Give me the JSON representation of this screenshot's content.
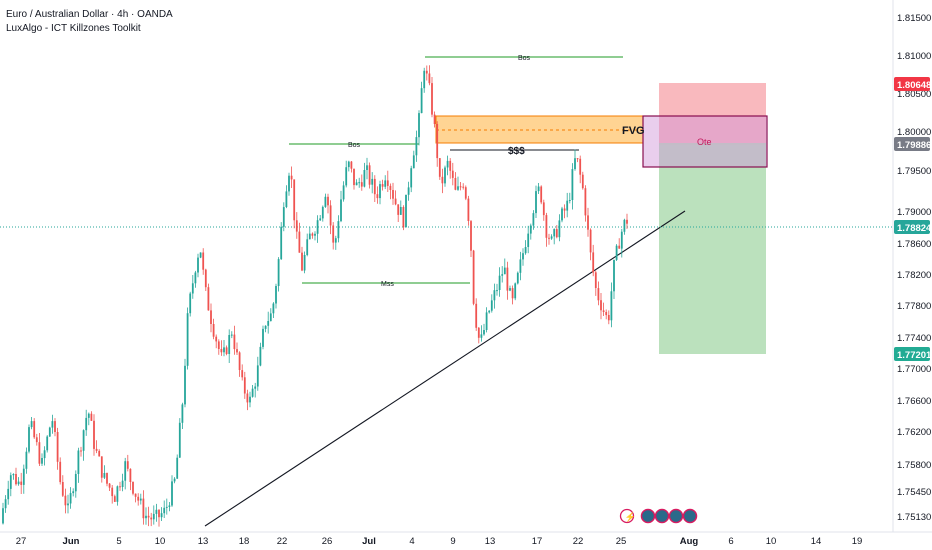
{
  "header": {
    "symbol": "Euro / Australian Dollar · 4h · OANDA",
    "indicator": "LuxAlgo - ICT Killzones Toolkit"
  },
  "colors": {
    "up": "#26a69a",
    "down": "#ef5350",
    "last_price": "#26a69a",
    "stop_tag": "#f23645",
    "entry_tag": "#787b86",
    "target_tag": "#22ab94",
    "bos_line": "#4caf50",
    "fvg_fill": "#ffcc80",
    "fvg_border": "#f57c00",
    "ote_border": "#880e4f",
    "stop_zone": "#f7a1a8",
    "target_zone": "#b7dfb9"
  },
  "chart_data": {
    "type": "candlestick",
    "price_ticks": [
      "1.81500",
      "1.81000",
      "1.80500",
      "1.80000",
      "1.79500",
      "1.79000",
      "1.78600",
      "1.78200",
      "1.77800",
      "1.77400",
      "1.77000",
      "1.76600",
      "1.76200",
      "1.75800",
      "1.75450",
      "1.75130"
    ],
    "date_ticks": [
      "27",
      "Jun",
      "5",
      "10",
      "13",
      "18",
      "22",
      "26",
      "Jul",
      "4",
      "9",
      "13",
      "17",
      "22",
      "25",
      "Aug",
      "6",
      "10",
      "14",
      "19"
    ],
    "price_tags": {
      "stop": "1.80648",
      "entry": "1.79886",
      "last": "1.78824",
      "target": "1.77201"
    },
    "annotations": {
      "bos_upper": "Bos",
      "bos_middle": "Bos",
      "mss": "Mss",
      "liquidity": "$$$",
      "fvg": "FVG",
      "ote": "Ote"
    },
    "trendline": {
      "from": {
        "date": "13",
        "price": 1.7503
      },
      "to": {
        "date": "Aug",
        "price": 1.79
      }
    },
    "candle_path": [
      [
        0,
        1.7505
      ],
      [
        10,
        1.757
      ],
      [
        20,
        1.7555
      ],
      [
        30,
        1.763
      ],
      [
        42,
        1.758
      ],
      [
        52,
        1.764
      ],
      [
        60,
        1.756
      ],
      [
        68,
        1.752
      ],
      [
        78,
        1.759
      ],
      [
        88,
        1.765
      ],
      [
        95,
        1.76
      ],
      [
        105,
        1.756
      ],
      [
        115,
        1.754
      ],
      [
        125,
        1.758
      ],
      [
        135,
        1.7545
      ],
      [
        145,
        1.7515
      ],
      [
        155,
        1.751
      ],
      [
        165,
        1.752
      ],
      [
        175,
        1.756
      ],
      [
        182,
        1.765
      ],
      [
        188,
        1.777
      ],
      [
        195,
        1.783
      ],
      [
        200,
        1.786
      ],
      [
        205,
        1.78
      ],
      [
        212,
        1.776
      ],
      [
        222,
        1.771
      ],
      [
        232,
        1.775
      ],
      [
        242,
        1.768
      ],
      [
        250,
        1.766
      ],
      [
        258,
        1.77
      ],
      [
        265,
        1.776
      ],
      [
        272,
        1.777
      ],
      [
        278,
        1.783
      ],
      [
        284,
        1.792
      ],
      [
        290,
        1.796
      ],
      [
        296,
        1.787
      ],
      [
        302,
        1.783
      ],
      [
        310,
        1.787
      ],
      [
        318,
        1.789
      ],
      [
        326,
        1.793
      ],
      [
        334,
        1.785
      ],
      [
        340,
        1.791
      ],
      [
        348,
        1.796
      ],
      [
        356,
        1.793
      ],
      [
        366,
        1.795
      ],
      [
        376,
        1.792
      ],
      [
        386,
        1.795
      ],
      [
        396,
        1.791
      ],
      [
        404,
        1.789
      ],
      [
        412,
        1.797
      ],
      [
        418,
        1.8
      ],
      [
        424,
        1.809
      ],
      [
        430,
        1.805
      ],
      [
        436,
        1.799
      ],
      [
        440,
        1.793
      ],
      [
        448,
        1.796
      ],
      [
        456,
        1.792
      ],
      [
        464,
        1.794
      ],
      [
        470,
        1.788
      ],
      [
        474,
        1.778
      ],
      [
        480,
        1.773
      ],
      [
        488,
        1.777
      ],
      [
        496,
        1.78
      ],
      [
        504,
        1.783
      ],
      [
        512,
        1.778
      ],
      [
        520,
        1.783
      ],
      [
        528,
        1.788
      ],
      [
        534,
        1.791
      ],
      [
        540,
        1.793
      ],
      [
        546,
        1.788
      ],
      [
        552,
        1.786
      ],
      [
        560,
        1.789
      ],
      [
        568,
        1.791
      ],
      [
        576,
        1.797
      ],
      [
        584,
        1.792
      ],
      [
        590,
        1.785
      ],
      [
        596,
        1.78
      ],
      [
        602,
        1.778
      ],
      [
        608,
        1.776
      ],
      [
        614,
        1.783
      ],
      [
        620,
        1.787
      ],
      [
        626,
        1.789
      ]
    ]
  }
}
